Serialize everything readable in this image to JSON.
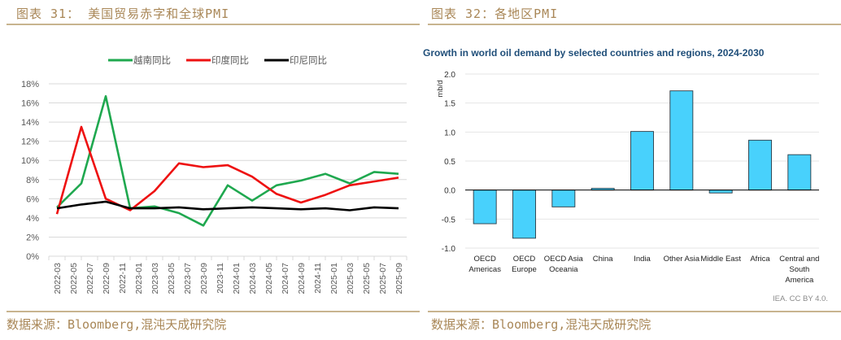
{
  "left_panel": {
    "title": "图表 31： 美国贸易赤字和全球PMI",
    "source": "数据来源：Bloomberg,混沌天成研究院"
  },
  "right_panel": {
    "title": "图表 32：各地区PMI",
    "source": "数据来源：Bloomberg,混沌天成研究院"
  },
  "chart_data": [
    {
      "type": "line",
      "title": "",
      "xlabel": "",
      "ylabel": "",
      "legend_position": "top-center",
      "grid": true,
      "ylim": [
        0,
        18
      ],
      "ytick_step": 2,
      "ytick_labels": [
        "0%",
        "2%",
        "4%",
        "6%",
        "8%",
        "10%",
        "12%",
        "14%",
        "16%",
        "18%"
      ],
      "xtick_labels": [
        "2022-03",
        "2022-05",
        "2022-07",
        "2022-09",
        "2022-11",
        "2023-01",
        "2023-03",
        "2023-05",
        "2023-07",
        "2023-09",
        "2023-11",
        "2024-01",
        "2024-03",
        "2024-05",
        "2024-07",
        "2024-09",
        "2024-11",
        "2025-01",
        "2025-03",
        "2025-05",
        "2025-07",
        "2025-09"
      ],
      "x": [
        "2022-03",
        "2022-06",
        "2022-09",
        "2022-12",
        "2023-03",
        "2023-06",
        "2023-09",
        "2023-12",
        "2024-03",
        "2024-06",
        "2024-09",
        "2024-12",
        "2025-03",
        "2025-06",
        "2025-09"
      ],
      "series": [
        {
          "name": "越南同比",
          "color": "#1fa84f",
          "values": [
            5.1,
            7.6,
            16.7,
            5.0,
            5.2,
            4.5,
            3.2,
            7.4,
            5.8,
            7.4,
            7.9,
            8.6,
            7.6,
            8.8,
            8.6
          ]
        },
        {
          "name": "印度同比",
          "color": "#ee1111",
          "values": [
            4.4,
            13.5,
            6.0,
            4.8,
            6.8,
            9.7,
            9.3,
            9.5,
            8.3,
            6.5,
            5.6,
            6.4,
            7.4,
            7.8,
            8.2
          ]
        },
        {
          "name": "印尼同比",
          "color": "#000000",
          "values": [
            5.0,
            5.4,
            5.7,
            5.0,
            5.0,
            5.1,
            4.9,
            5.0,
            5.1,
            5.0,
            4.9,
            5.0,
            4.8,
            5.1,
            5.0
          ]
        }
      ]
    },
    {
      "type": "bar",
      "title": "Growth in world oil demand by selected countries and regions, 2024-2030",
      "xlabel": "",
      "ylabel": "mb/d",
      "ylim": [
        -1.0,
        2.0
      ],
      "ytick_step": 0.5,
      "ytick_labels": [
        "-1.0",
        "-0.5",
        "0.0",
        "0.5",
        "1.0",
        "1.5",
        "2.0"
      ],
      "grid": true,
      "bar_color": "#48d1fc",
      "categories": [
        [
          "OECD",
          "Americas"
        ],
        [
          "OECD",
          "Europe"
        ],
        [
          "OECD Asia",
          "Oceania"
        ],
        [
          "China"
        ],
        [
          "India"
        ],
        [
          "Other Asia"
        ],
        [
          "Middle East"
        ],
        [
          "Africa"
        ],
        [
          "Central and",
          "South",
          "America"
        ]
      ],
      "values": [
        -0.58,
        -0.83,
        -0.29,
        0.03,
        1.01,
        1.71,
        -0.05,
        0.86,
        0.61
      ],
      "credit": "IEA. CC BY 4.0."
    }
  ]
}
